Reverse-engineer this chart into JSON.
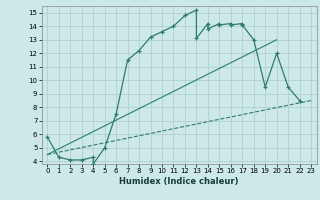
{
  "xlabel": "Humidex (Indice chaleur)",
  "bg_color": "#cce8e8",
  "grid_color": "#aacccc",
  "line_color": "#2e7b6e",
  "xlim": [
    -0.5,
    23.5
  ],
  "ylim": [
    3.8,
    15.5
  ],
  "xticks": [
    0,
    1,
    2,
    3,
    4,
    5,
    6,
    7,
    8,
    9,
    10,
    11,
    12,
    13,
    14,
    15,
    16,
    17,
    18,
    19,
    20,
    21,
    22,
    23
  ],
  "yticks": [
    4,
    5,
    6,
    7,
    8,
    9,
    10,
    11,
    12,
    13,
    14,
    15
  ],
  "series1_x": [
    0,
    1,
    2,
    3,
    4,
    4,
    5,
    6,
    7,
    8,
    9,
    10,
    11,
    12,
    13,
    13,
    14,
    14,
    15,
    15,
    16,
    16,
    17,
    17,
    18,
    19,
    20,
    21,
    22
  ],
  "series1_y": [
    5.8,
    4.3,
    4.1,
    4.1,
    4.3,
    3.8,
    5.0,
    7.5,
    11.5,
    12.2,
    13.2,
    13.6,
    14.0,
    14.8,
    15.2,
    13.1,
    14.2,
    13.8,
    14.2,
    14.1,
    14.2,
    14.1,
    14.2,
    14.1,
    13.0,
    9.5,
    12.0,
    9.5,
    8.5
  ],
  "line2_x": [
    0,
    23
  ],
  "line2_y": [
    4.5,
    8.5
  ],
  "line3_x": [
    0,
    20
  ],
  "line3_y": [
    4.5,
    13.0
  ]
}
